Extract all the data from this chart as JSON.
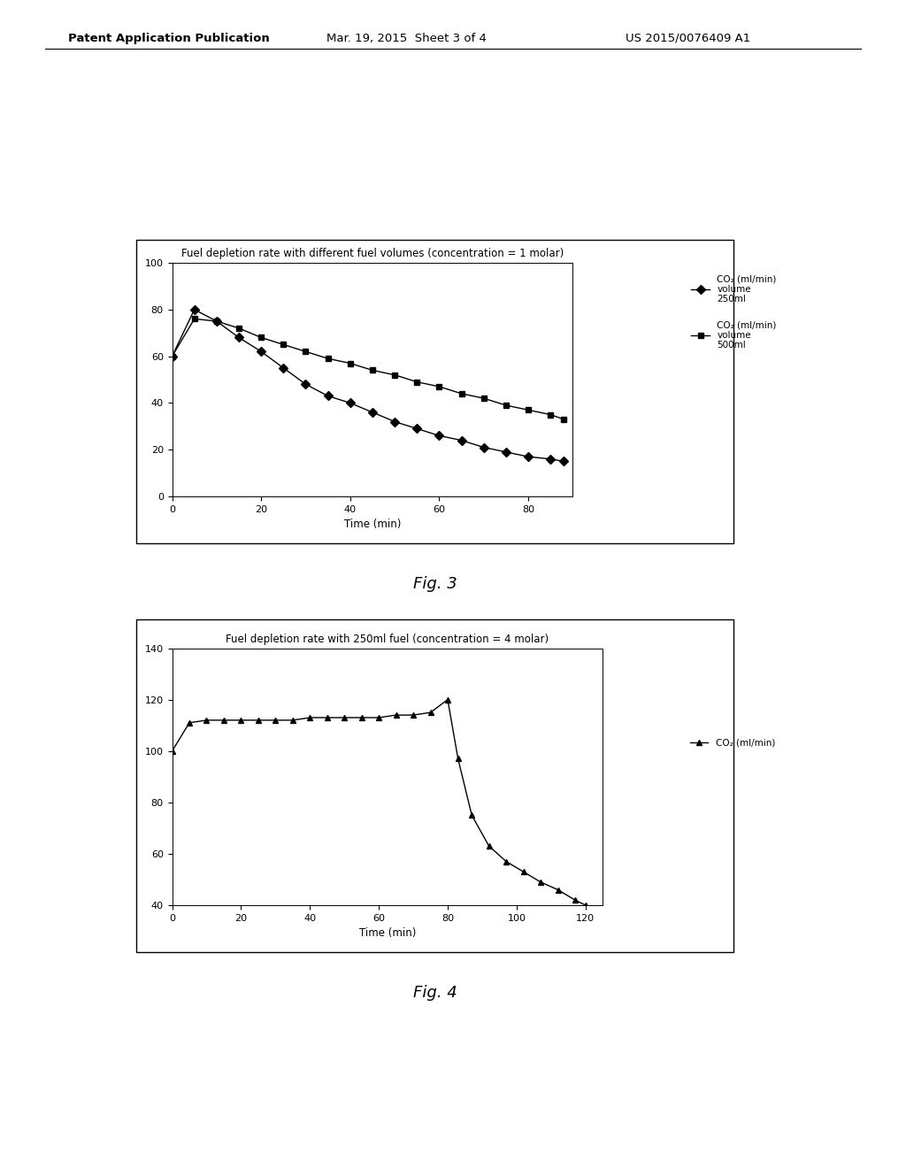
{
  "fig3_title": "Fuel depletion rate with different fuel volumes (concentration = 1 molar)",
  "fig3_xlabel": "Time (min)",
  "fig3_xlim": [
    0,
    90
  ],
  "fig3_ylim": [
    0,
    100
  ],
  "fig3_xticks": [
    0,
    20,
    40,
    60,
    80
  ],
  "fig3_yticks": [
    0,
    20,
    40,
    60,
    80,
    100
  ],
  "fig3_series1_x": [
    0,
    5,
    10,
    15,
    20,
    25,
    30,
    35,
    40,
    45,
    50,
    55,
    60,
    65,
    70,
    75,
    80,
    85,
    88
  ],
  "fig3_series1_y": [
    60,
    80,
    75,
    68,
    62,
    55,
    48,
    43,
    40,
    36,
    32,
    29,
    26,
    24,
    21,
    19,
    17,
    16,
    15
  ],
  "fig3_series2_x": [
    0,
    5,
    10,
    15,
    20,
    25,
    30,
    35,
    40,
    45,
    50,
    55,
    60,
    65,
    70,
    75,
    80,
    85,
    88
  ],
  "fig3_series2_y": [
    60,
    76,
    75,
    72,
    68,
    65,
    62,
    59,
    57,
    54,
    52,
    49,
    47,
    44,
    42,
    39,
    37,
    35,
    33
  ],
  "fig3_legend1": "CO₂ (ml/min)\nvolume\n250ml",
  "fig3_legend2": "CO₂ (ml/min)\nvolume\n500ml",
  "fig4_title": "Fuel depletion rate with 250ml fuel (concentration = 4 molar)",
  "fig4_xlabel": "Time (min)",
  "fig4_xlim": [
    0,
    125
  ],
  "fig4_ylim": [
    40,
    140
  ],
  "fig4_xticks": [
    0,
    20,
    40,
    60,
    80,
    100,
    120
  ],
  "fig4_yticks": [
    40,
    60,
    80,
    100,
    120,
    140
  ],
  "fig4_series_x": [
    0,
    5,
    10,
    15,
    20,
    25,
    30,
    35,
    40,
    45,
    50,
    55,
    60,
    65,
    70,
    75,
    80,
    83,
    87,
    92,
    97,
    102,
    107,
    112,
    117,
    120
  ],
  "fig4_series_y": [
    100,
    111,
    112,
    112,
    112,
    112,
    112,
    112,
    113,
    113,
    113,
    113,
    113,
    114,
    114,
    115,
    120,
    97,
    75,
    63,
    57,
    53,
    49,
    46,
    42,
    40
  ],
  "fig4_legend": "CO₂ (ml/min)",
  "background_color": "#ffffff",
  "fig3_label": "Fig. 3",
  "fig4_label": "Fig. 4",
  "header_left": "Patent Application Publication",
  "header_center": "Mar. 19, 2015  Sheet 3 of 4",
  "header_right": "US 2015/0076409 A1"
}
